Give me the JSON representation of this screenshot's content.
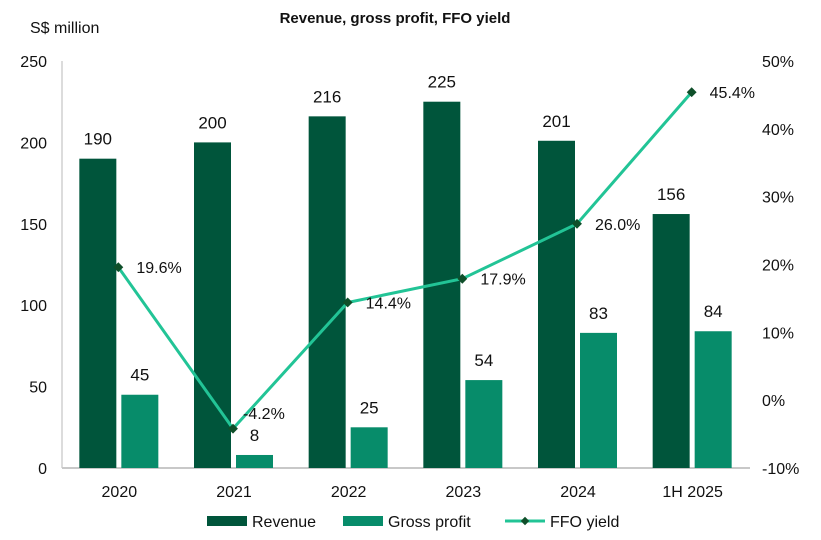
{
  "chart_data": {
    "type": "bar",
    "title": "Revenue, gross profit, FFO yield",
    "ylabel": "S$ million",
    "categories": [
      "2020",
      "2021",
      "2022",
      "2023",
      "2024",
      "1H 2025"
    ],
    "ylim": [
      0,
      250
    ],
    "yticks": [
      0,
      50,
      100,
      150,
      200,
      250
    ],
    "y2lim": [
      -10,
      50
    ],
    "y2ticks": [
      "-10%",
      "0%",
      "10%",
      "20%",
      "30%",
      "40%",
      "50%"
    ],
    "y2tick_values": [
      -10,
      0,
      10,
      20,
      30,
      40,
      50
    ],
    "grid": false,
    "legend_placement": "bottom",
    "series": [
      {
        "name": "Revenue",
        "type": "bar",
        "axis": "left",
        "values": [
          190,
          200,
          216,
          225,
          201,
          156
        ],
        "labels": [
          "190",
          "200",
          "216",
          "225",
          "201",
          "156"
        ],
        "color": "#00553b"
      },
      {
        "name": "Gross profit",
        "type": "bar",
        "axis": "left",
        "values": [
          45,
          8,
          25,
          54,
          83,
          84
        ],
        "labels": [
          "45",
          "8",
          "25",
          "54",
          "83",
          "84"
        ],
        "color": "#078c6a"
      },
      {
        "name": "FFO yield",
        "type": "line",
        "axis": "right",
        "values": [
          19.6,
          -4.2,
          14.4,
          17.9,
          26.0,
          45.4
        ],
        "labels": [
          "19.6%",
          "-4.2%",
          "14.4%",
          "17.9%",
          "26.0%",
          "45.4%"
        ],
        "color": "#22c496",
        "marker_color": "#0f4f2a"
      }
    ]
  }
}
